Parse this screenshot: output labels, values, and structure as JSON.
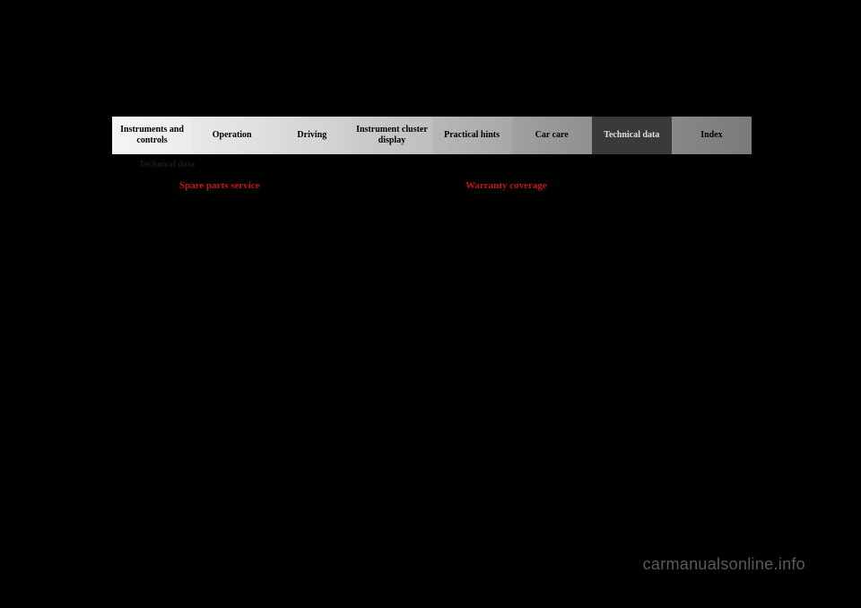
{
  "tabs": [
    {
      "label": "Instruments and controls"
    },
    {
      "label": "Operation"
    },
    {
      "label": "Driving"
    },
    {
      "label": "Instrument cluster display"
    },
    {
      "label": "Practical hints"
    },
    {
      "label": "Car care"
    },
    {
      "label": "Technical data"
    },
    {
      "label": "Index"
    }
  ],
  "section_label": "Technical data",
  "headings": {
    "left": "Spare parts service",
    "right": "Warranty coverage"
  },
  "watermark": "carmanualsonline.info"
}
